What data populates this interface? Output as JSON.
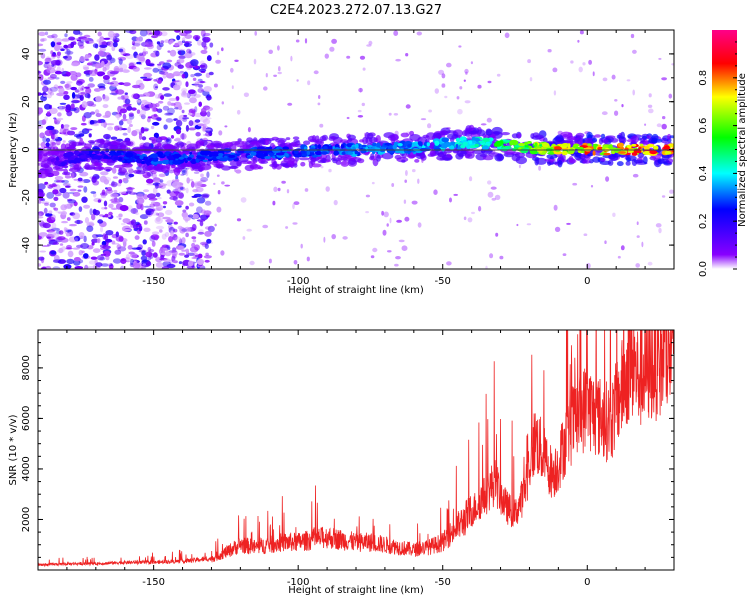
{
  "page": {
    "title": "C2E4.2023.272.07.13.G27"
  },
  "chart_data": [
    {
      "type": "heatmap",
      "title": "C2E4.2023.272.07.13.G27",
      "xlabel": "Height of straight line (km)",
      "ylabel": "Frequency (Hz)",
      "xlim": [
        -190,
        30
      ],
      "ylim": [
        -50,
        50
      ],
      "x_ticks": [
        -150,
        -100,
        -50,
        0
      ],
      "x_tick_labels": [
        "-150",
        "-100",
        "-50",
        "0"
      ],
      "y_ticks": [
        -40,
        -20,
        0,
        20,
        40
      ],
      "y_tick_labels": [
        "-40",
        "-20",
        "0",
        "20",
        "40"
      ],
      "colorbar": {
        "label": "Normalized spectral amplitude",
        "range": [
          0.0,
          1.0
        ],
        "ticks": [
          0.0,
          0.2,
          0.4,
          0.6,
          0.8
        ],
        "tick_labels": [
          "0.0",
          "0.2",
          "0.4",
          "0.6",
          "0.8"
        ],
        "colors": [
          "#ffffff",
          "#8800ff",
          "#0000ff",
          "#00ffff",
          "#00ff00",
          "#ffff00",
          "#ff0000",
          "#ff0088"
        ]
      },
      "ridge": {
        "description_x": [
          -185,
          -170,
          -150,
          -120,
          -100,
          -80,
          -60,
          -50,
          -40,
          -30,
          -20,
          -10,
          0,
          10,
          20,
          30
        ],
        "frequency": [
          -5,
          -2,
          -4,
          -2,
          -1,
          0,
          1,
          2,
          3,
          2,
          1,
          0,
          0,
          0,
          0,
          0
        ],
        "amplitude": [
          0.15,
          0.25,
          0.3,
          0.3,
          0.32,
          0.35,
          0.38,
          0.4,
          0.45,
          0.55,
          0.65,
          0.8,
          0.85,
          0.85,
          0.88,
          0.9
        ]
      },
      "grid": false
    },
    {
      "type": "line",
      "xlabel": "Height of straight line (km)",
      "ylabel": "SNR (10 * v/v)",
      "xlim": [
        -190,
        30
      ],
      "ylim": [
        0,
        9500
      ],
      "x_ticks": [
        -150,
        -100,
        -50,
        0
      ],
      "x_tick_labels": [
        "-150",
        "-100",
        "-50",
        "0"
      ],
      "y_ticks": [
        2000,
        4000,
        6000,
        8000
      ],
      "y_tick_labels": [
        "2000",
        "4000",
        "6000",
        "8000"
      ],
      "color": "#ee2222",
      "series": [
        {
          "x": [
            -190,
            -180,
            -170,
            -160,
            -150,
            -140,
            -130,
            -125,
            -120,
            -115,
            -110,
            -105,
            -100,
            -95,
            -90,
            -85,
            -80,
            -75,
            -70,
            -65,
            -60,
            -55,
            -50,
            -45,
            -40,
            -35,
            -32,
            -30,
            -28,
            -25,
            -22,
            -20,
            -18,
            -15,
            -12,
            -10,
            -8,
            -5,
            -2,
            0,
            2,
            5,
            8,
            10,
            12,
            15,
            18,
            20,
            22,
            25,
            28,
            30
          ],
          "y": [
            200,
            250,
            250,
            300,
            300,
            350,
            450,
            700,
            1000,
            900,
            1000,
            1100,
            1100,
            1200,
            1300,
            1200,
            1100,
            1100,
            1000,
            900,
            800,
            900,
            1100,
            1700,
            2300,
            3000,
            3500,
            3000,
            2500,
            2200,
            3000,
            4200,
            5200,
            4500,
            3800,
            4200,
            5000,
            5800,
            6200,
            6600,
            6200,
            6000,
            5800,
            6500,
            7200,
            8200,
            7600,
            7800,
            8000,
            8200,
            8400,
            8600
          ]
        }
      ],
      "grid": false
    }
  ]
}
